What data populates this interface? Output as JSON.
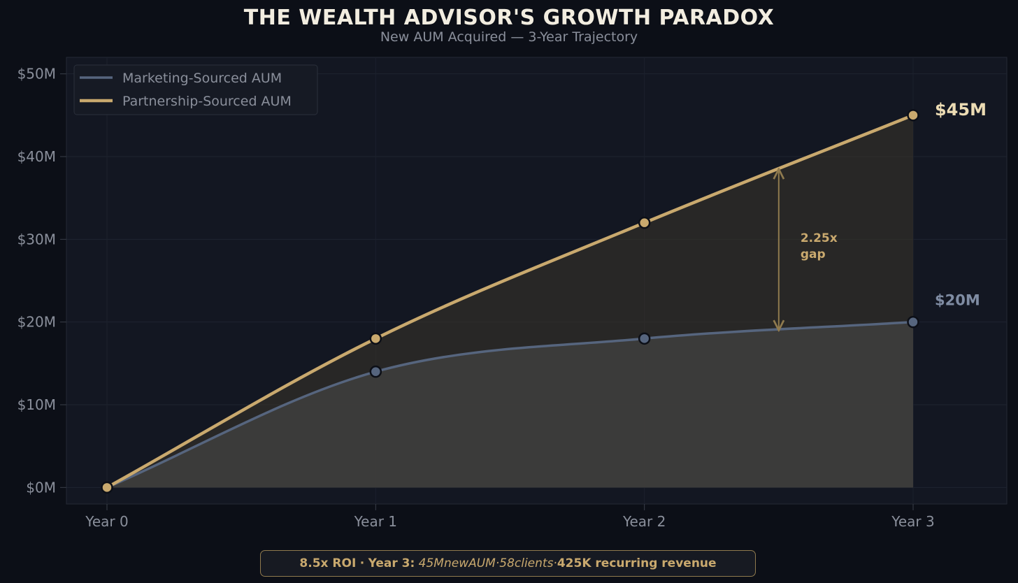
{
  "header": {
    "title": "THE WEALTH ADVISOR'S GROWTH PARADOX",
    "subtitle": "New AUM Acquired — 3-Year Trajectory"
  },
  "colors": {
    "marketing": "#56657e",
    "partnership": "#c9a96e",
    "background": "#0c0f17",
    "plot_background": "#131722"
  },
  "chart_data": {
    "type": "line",
    "categories": [
      "Year 0",
      "Year 1",
      "Year 2",
      "Year 3"
    ],
    "series": [
      {
        "name": "Marketing-Sourced AUM",
        "values": [
          0,
          14,
          18,
          20
        ],
        "color": "#56657e"
      },
      {
        "name": "Partnership-Sourced AUM",
        "values": [
          0,
          18,
          32,
          45
        ],
        "color": "#c9a96e"
      }
    ],
    "ylim": [
      -2,
      52
    ],
    "yticks": [
      0,
      10,
      20,
      30,
      40,
      50
    ],
    "ytick_labels": [
      "$0M",
      "$10M",
      "$20M",
      "$30M",
      "$40M",
      "$50M"
    ],
    "grid": true,
    "legend": "top-left",
    "end_labels": [
      "$20M",
      "$45M"
    ],
    "gap_annotation": {
      "line1": "2.25x",
      "line2": "gap",
      "x": 2.5,
      "from": 19,
      "to": 38.5
    }
  },
  "footer": {
    "roi": "8.5x ROI",
    "sep": "·",
    "year_label": "Year 3:",
    "italic_text": "45MnewAUM·58clients·",
    "revenue_text": "425K recurring revenue"
  }
}
